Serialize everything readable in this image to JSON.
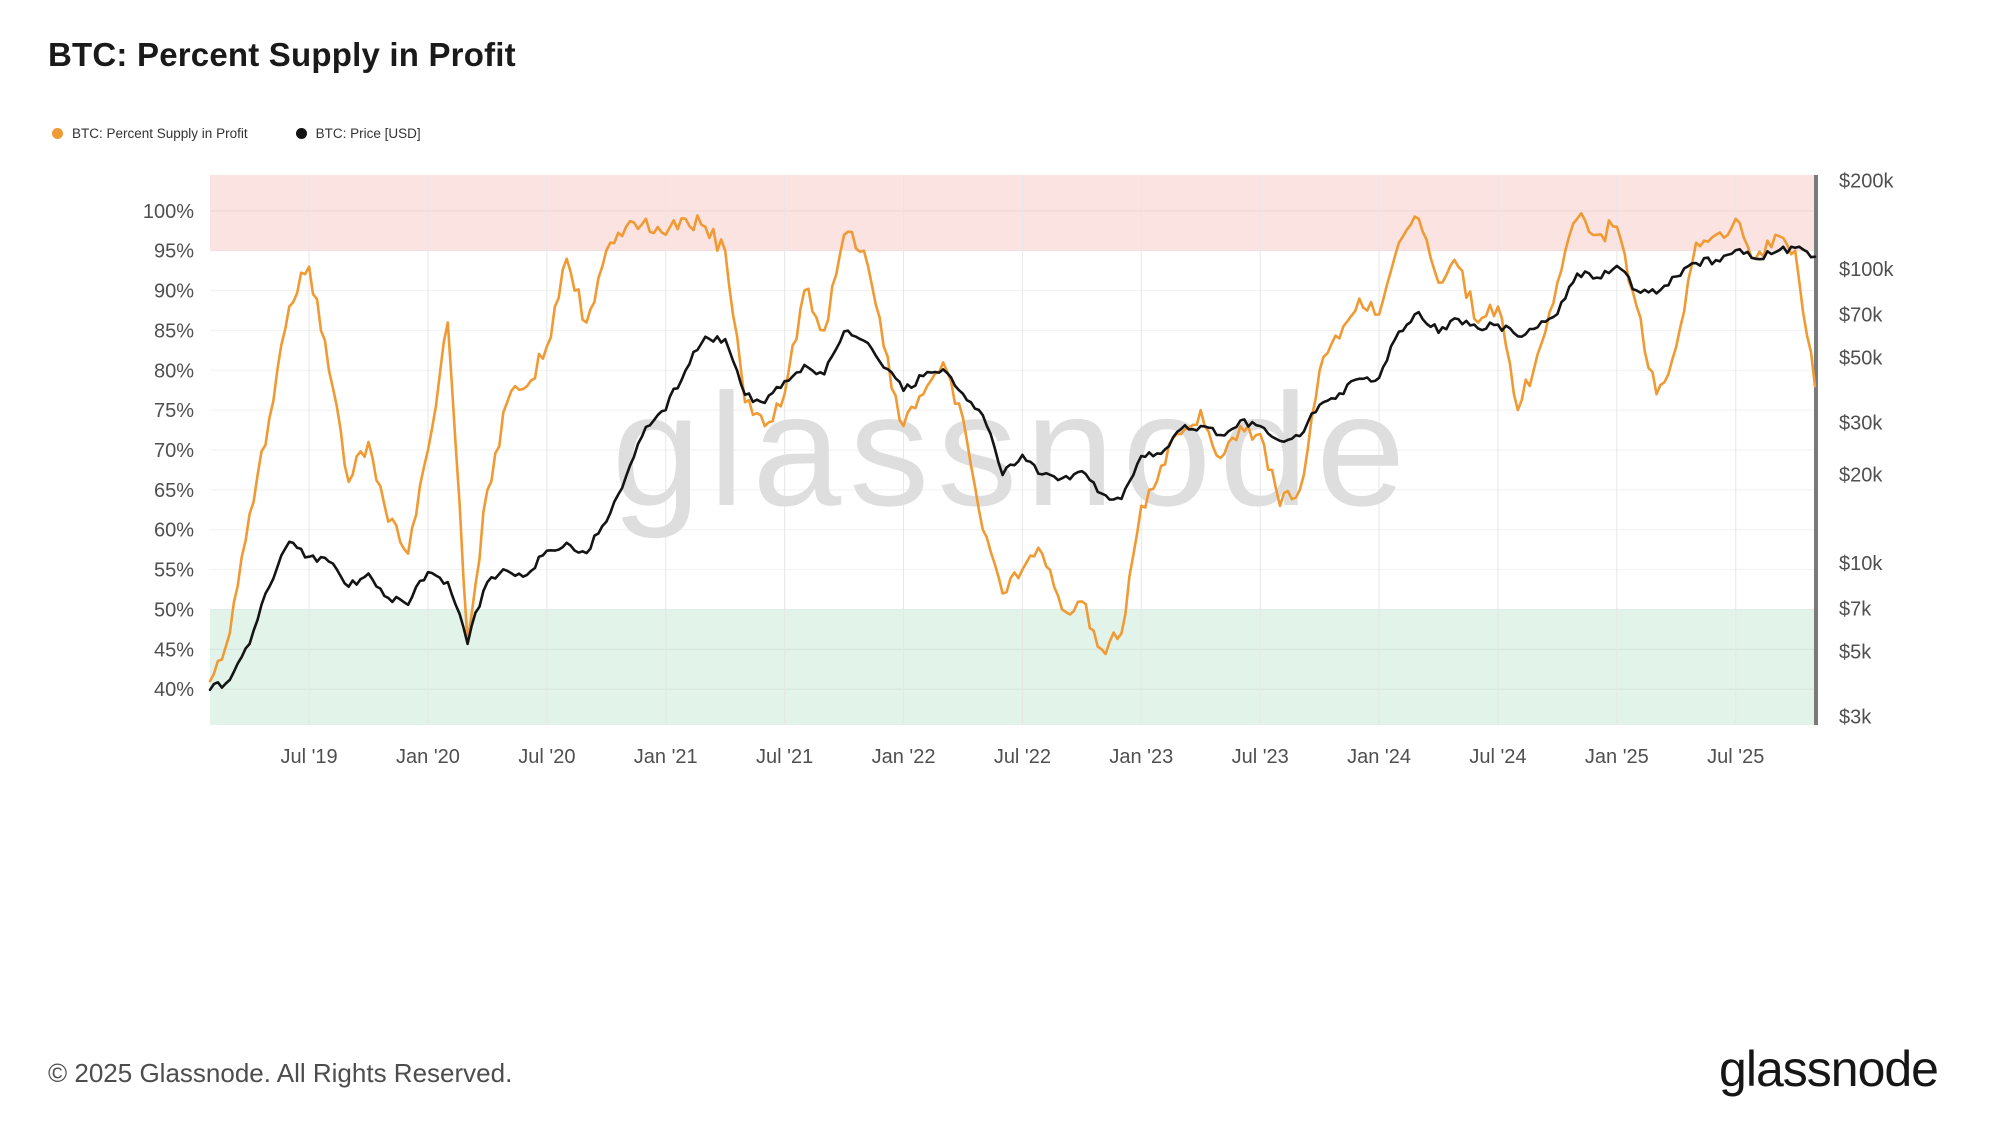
{
  "title": "BTC: Percent Supply in Profit",
  "legend": {
    "items": [
      {
        "label": "BTC: Percent Supply in Profit",
        "color": "#f09a33"
      },
      {
        "label": "BTC: Price [USD]",
        "color": "#141414"
      }
    ]
  },
  "watermark": "glassnode",
  "footer": {
    "copyright": "© 2025 Glassnode. All Rights Reserved.",
    "brand": "glassnode"
  },
  "colors": {
    "supply_line": "#f09a33",
    "price_line": "#141414",
    "upper_band": "#fbe3e1",
    "lower_band": "#e2f3ea",
    "gridline": "#e7e7e7",
    "axis_text": "#4f4f4f",
    "right_axis_bar": "#7a7a7a",
    "watermark_gray": "#dedede"
  },
  "chart_data": {
    "type": "line",
    "title": "BTC: Percent Supply in Profit",
    "legend_position": "top-left",
    "x_range": [
      "2019-02",
      "2025-11"
    ],
    "months": [
      "2019-02",
      "2019-03",
      "2019-04",
      "2019-05",
      "2019-06",
      "2019-07",
      "2019-08",
      "2019-09",
      "2019-10",
      "2019-11",
      "2019-12",
      "2020-01",
      "2020-02",
      "2020-03",
      "2020-04",
      "2020-05",
      "2020-06",
      "2020-07",
      "2020-08",
      "2020-09",
      "2020-10",
      "2020-11",
      "2020-12",
      "2021-01",
      "2021-02",
      "2021-03",
      "2021-04",
      "2021-05",
      "2021-06",
      "2021-07",
      "2021-08",
      "2021-09",
      "2021-10",
      "2021-11",
      "2021-12",
      "2022-01",
      "2022-02",
      "2022-03",
      "2022-04",
      "2022-05",
      "2022-06",
      "2022-07",
      "2022-08",
      "2022-09",
      "2022-10",
      "2022-11",
      "2022-12",
      "2023-01",
      "2023-02",
      "2023-03",
      "2023-04",
      "2023-05",
      "2023-06",
      "2023-07",
      "2023-08",
      "2023-09",
      "2023-10",
      "2023-11",
      "2023-12",
      "2024-01",
      "2024-02",
      "2024-03",
      "2024-04",
      "2024-05",
      "2024-06",
      "2024-07",
      "2024-08",
      "2024-09",
      "2024-10",
      "2024-11",
      "2024-12",
      "2025-01",
      "2025-02",
      "2025-03",
      "2025-04",
      "2025-05",
      "2025-06",
      "2025-07",
      "2025-08",
      "2025-09",
      "2025-10",
      "2025-11"
    ],
    "x_ticks": [
      {
        "index": 5,
        "label": "Jul '19"
      },
      {
        "index": 11,
        "label": "Jan '20"
      },
      {
        "index": 17,
        "label": "Jul '20"
      },
      {
        "index": 23,
        "label": "Jan '21"
      },
      {
        "index": 29,
        "label": "Jul '21"
      },
      {
        "index": 35,
        "label": "Jan '22"
      },
      {
        "index": 41,
        "label": "Jul '22"
      },
      {
        "index": 47,
        "label": "Jan '23"
      },
      {
        "index": 53,
        "label": "Jul '23"
      },
      {
        "index": 59,
        "label": "Jan '24"
      },
      {
        "index": 65,
        "label": "Jul '24"
      },
      {
        "index": 71,
        "label": "Jan '25"
      },
      {
        "index": 77,
        "label": "Jul '25"
      }
    ],
    "left_axis": {
      "suffix": "%",
      "ticks": [
        100,
        95,
        90,
        85,
        80,
        75,
        70,
        65,
        60,
        55,
        50,
        45,
        40
      ],
      "domain": [
        35.5,
        104.5
      ],
      "grid": true
    },
    "right_axis": {
      "scale": "log",
      "ticks": [
        {
          "value": 200000,
          "label": "$200k"
        },
        {
          "value": 100000,
          "label": "$100k"
        },
        {
          "value": 70000,
          "label": "$70k"
        },
        {
          "value": 50000,
          "label": "$50k"
        },
        {
          "value": 30000,
          "label": "$30k"
        },
        {
          "value": 20000,
          "label": "$20k"
        },
        {
          "value": 10000,
          "label": "$10k"
        },
        {
          "value": 7000,
          "label": "$7k"
        },
        {
          "value": 5000,
          "label": "$5k"
        },
        {
          "value": 3000,
          "label": "$3k"
        }
      ]
    },
    "bands": [
      {
        "axis": "left",
        "from": 95,
        "to": 104.5,
        "color": "#fbe3e1"
      },
      {
        "axis": "left",
        "from": 35.5,
        "to": 50,
        "color": "#e2f3ea"
      }
    ],
    "series": [
      {
        "name": "BTC: Percent Supply in Profit",
        "axis": "left",
        "unit": "%",
        "color": "#f09a33",
        "values": [
          41,
          47,
          62,
          74,
          88,
          93,
          80,
          66,
          71,
          61,
          57,
          70,
          86,
          46,
          65,
          76,
          78,
          83,
          94,
          86,
          95,
          98,
          99,
          97,
          99,
          98,
          95,
          76,
          73,
          77,
          90,
          85,
          97,
          95,
          83,
          73,
          77,
          81,
          74,
          60,
          52,
          55,
          57,
          50,
          51,
          45,
          47,
          63,
          68,
          72,
          75,
          69,
          73,
          72,
          63,
          65,
          80,
          84,
          89,
          87,
          96,
          99,
          91,
          93,
          86,
          88,
          75,
          82,
          91,
          99,
          97,
          98,
          88,
          77,
          83,
          96,
          97,
          99,
          94,
          97,
          95,
          78
        ]
      },
      {
        "name": "BTC: Price [USD]",
        "axis": "right",
        "unit": "USD",
        "color": "#141414",
        "values": [
          3700,
          4000,
          5300,
          8300,
          11800,
          10500,
          10100,
          8300,
          9200,
          7600,
          7200,
          9300,
          8600,
          5300,
          8600,
          9400,
          9100,
          11000,
          11700,
          10800,
          13800,
          19700,
          29000,
          33100,
          45200,
          58800,
          57700,
          37300,
          35000,
          41500,
          47100,
          43800,
          61300,
          57000,
          46200,
          38500,
          43200,
          45500,
          37600,
          31800,
          19900,
          23300,
          20000,
          19400,
          20500,
          17200,
          16500,
          23100,
          23500,
          28500,
          29200,
          27200,
          30500,
          29200,
          26000,
          27000,
          34500,
          37700,
          42300,
          42600,
          61200,
          71300,
          60600,
          67500,
          62700,
          64600,
          59000,
          63300,
          70200,
          96400,
          93400,
          102400,
          84400,
          82500,
          94200,
          104600,
          107100,
          115800,
          108200,
          114000,
          118000,
          110000
        ]
      }
    ]
  }
}
